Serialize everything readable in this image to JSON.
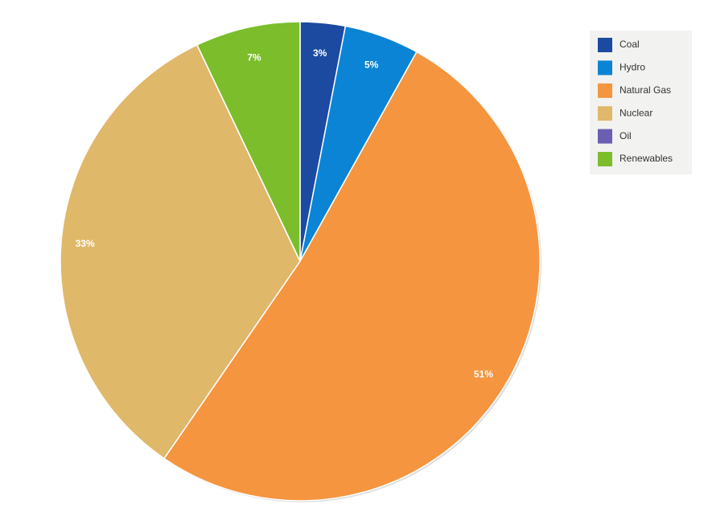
{
  "chart_data": {
    "type": "pie",
    "categories": [
      "Coal",
      "Hydro",
      "Natural Gas",
      "Nuclear",
      "Oil",
      "Renewables"
    ],
    "values": [
      3,
      5,
      51,
      33,
      0,
      7
    ],
    "value_labels": [
      "3%",
      "5%",
      "51%",
      "33%",
      null,
      "7%"
    ],
    "colors": [
      "#1b4aa0",
      "#0b84d6",
      "#f5953f",
      "#e0b86a",
      "#6a5fb0",
      "#7bbd2b"
    ],
    "legend": "top-right"
  }
}
